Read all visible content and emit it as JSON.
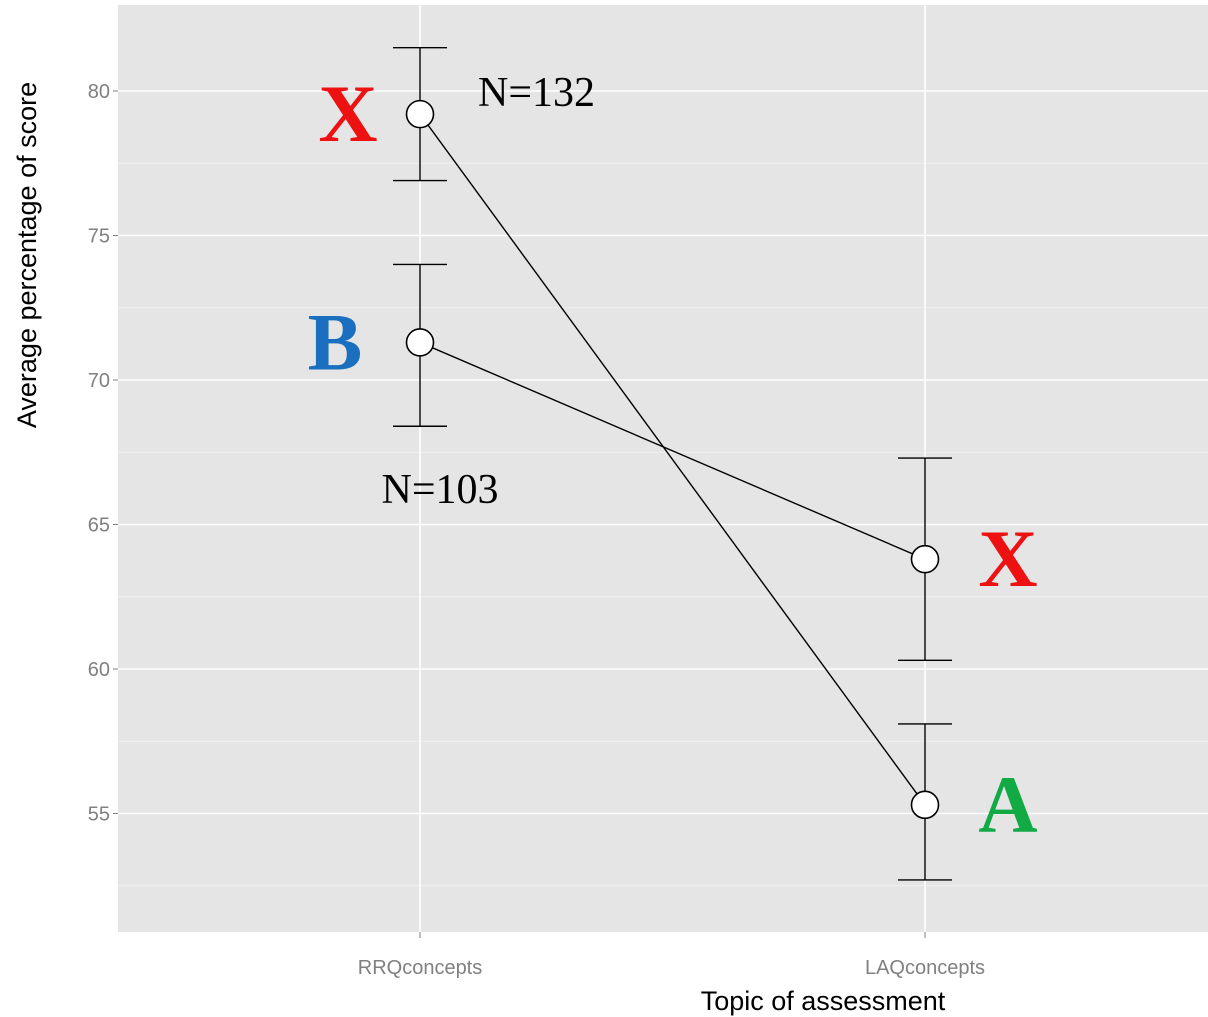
{
  "chart_data": {
    "type": "line",
    "xlabel": "Topic of assessment",
    "ylabel": "Average percentage of score",
    "categories": [
      "RRQconcepts",
      "LAQconcepts"
    ],
    "y_ticks": [
      55,
      60,
      65,
      70,
      75,
      80
    ],
    "y_tick_labels": [
      "55",
      "60",
      "65",
      "70",
      "75",
      "80"
    ],
    "ylim": [
      47,
      83
    ],
    "grid": true,
    "series": [
      {
        "values": [
          79.2,
          55.3
        ],
        "error_low": [
          76.9,
          52.7
        ],
        "error_high": [
          81.5,
          58.1
        ],
        "group_labels": [
          "X",
          "A"
        ],
        "group_colors": [
          "#ee1111",
          "#11aa44"
        ],
        "n_label": "N=132"
      },
      {
        "values": [
          71.3,
          63.8
        ],
        "error_low": [
          68.4,
          60.3
        ],
        "error_high": [
          74.0,
          67.3
        ],
        "group_labels": [
          "B",
          "X"
        ],
        "group_colors": [
          "#1a6fbf",
          "#ee1111"
        ],
        "n_label": "N=103"
      }
    ]
  }
}
